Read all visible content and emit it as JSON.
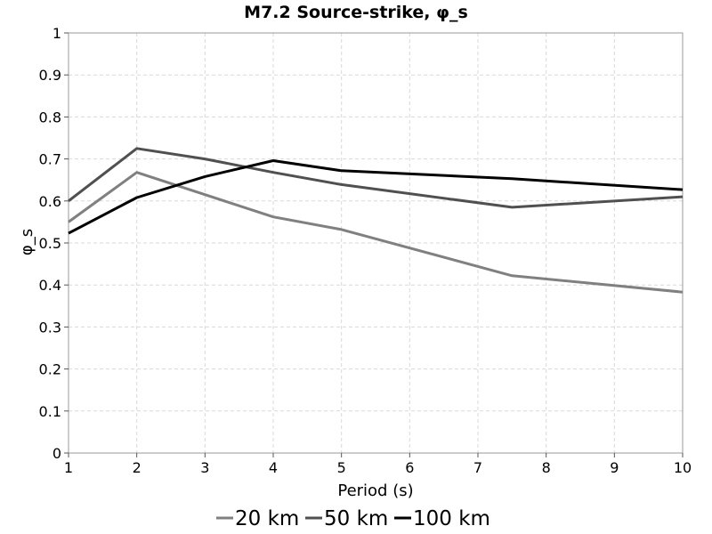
{
  "chart_data": {
    "type": "line",
    "title": "M7.2 Source-strike, φ_s",
    "xlabel": "Period (s)",
    "ylabel": "φ_s",
    "xlim": [
      1,
      10
    ],
    "ylim": [
      0,
      1
    ],
    "xticks": [
      "1",
      "2",
      "3",
      "4",
      "5",
      "6",
      "7",
      "8",
      "9",
      "10"
    ],
    "yticks": [
      "0",
      "0.1",
      "0.2",
      "0.3",
      "0.4",
      "0.5",
      "0.6",
      "0.7",
      "0.8",
      "0.9",
      "1"
    ],
    "grid": true,
    "legend_position": "bottom",
    "series": [
      {
        "name": "20 km",
        "color": "#808080",
        "x": [
          1,
          2,
          3,
          4,
          5,
          7.5,
          10
        ],
        "y": [
          0.55,
          0.668,
          0.615,
          0.562,
          0.532,
          0.422,
          0.383
        ]
      },
      {
        "name": "50 km",
        "color": "#505050",
        "x": [
          1,
          2,
          3,
          4,
          5,
          7.5,
          10
        ],
        "y": [
          0.6,
          0.725,
          0.7,
          0.668,
          0.639,
          0.585,
          0.61
        ]
      },
      {
        "name": "100 km",
        "color": "#000000",
        "x": [
          1,
          2,
          3,
          4,
          5,
          7.5,
          10
        ],
        "y": [
          0.523,
          0.608,
          0.658,
          0.696,
          0.672,
          0.653,
          0.627
        ]
      }
    ]
  }
}
